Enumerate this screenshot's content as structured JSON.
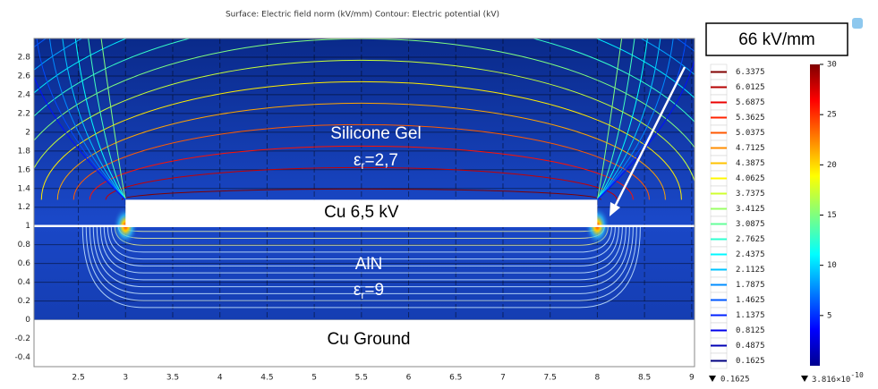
{
  "chart_data": {
    "type": "surface-contour",
    "title": "Surface: Electric field norm (kV/mm)  Contour: Electric potential (kV)",
    "xlim": [
      2.03,
      9.03
    ],
    "xticks": [
      2.5,
      3,
      3.5,
      4,
      4.5,
      5,
      5.5,
      6,
      6.5,
      7,
      7.5,
      8,
      8.5,
      9
    ],
    "ylim": [
      -0.5,
      3.0
    ],
    "yticks": [
      -0.4,
      -0.2,
      0,
      0.2,
      0.4,
      0.6,
      0.8,
      1,
      1.2,
      1.4,
      1.6,
      1.8,
      2,
      2.2,
      2.4,
      2.6,
      2.8
    ],
    "grid": true,
    "colormap": "jet",
    "annotations": {
      "max_field": "66 kV/mm",
      "gel": "Silicone Gel",
      "gel_eps": {
        "symbol": "ε",
        "sub": "r",
        "text": "=2,7"
      },
      "electrode": "Cu 6,5 kV",
      "substrate": "AlN",
      "substrate_eps": {
        "symbol": "ε",
        "sub": "r",
        "text": "=9"
      },
      "ground": "Cu Ground"
    },
    "contour_levels": [
      6.3375,
      6.0125,
      5.6875,
      5.3625,
      5.0375,
      4.7125,
      4.3875,
      4.0625,
      3.7375,
      3.4125,
      3.0875,
      2.7625,
      2.4375,
      2.1125,
      1.7875,
      1.4625,
      1.1375,
      0.8125,
      0.4875,
      0.1625
    ],
    "contour_min": 0.1625,
    "surface_lim": [
      3.816e-10,
      30
    ],
    "surface_ticks": [
      30,
      25,
      20,
      15,
      10,
      5
    ],
    "surface_min": {
      "value": 3.816e-10,
      "label": "3.816×10",
      "exponent": "-10"
    }
  }
}
